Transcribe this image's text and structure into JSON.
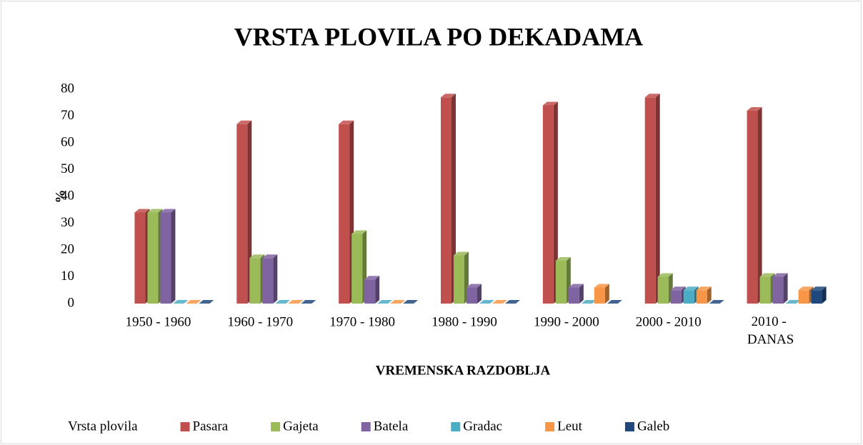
{
  "chart_data": {
    "type": "bar3d",
    "title": "VRSTA PLOVILA PO DEKADAMA",
    "y_label": "%",
    "x_label": "VREMENSKA RAZDOBLJA",
    "legend_title": "Vrsta plovila",
    "legend": "bottom",
    "grid": false,
    "categories": [
      "1950 - 1960",
      "1960 - 1970",
      "1970 - 1980",
      "1980 - 1990",
      "1990 - 2000",
      "2000 - 2010",
      "2010 - DANAS"
    ],
    "series": [
      {
        "name": "Pasara",
        "color": "#c0504d",
        "values": [
          34,
          67,
          67,
          77,
          74,
          77,
          72
        ]
      },
      {
        "name": "Gajeta",
        "color": "#9bbb59",
        "values": [
          34,
          17,
          26,
          18,
          16,
          10,
          10
        ]
      },
      {
        "name": "Batela",
        "color": "#8064a2",
        "values": [
          34,
          17,
          9,
          6,
          6,
          5,
          10
        ]
      },
      {
        "name": "Gradac",
        "color": "#4bacc6",
        "values": [
          0,
          0,
          0,
          0,
          0,
          5,
          0
        ]
      },
      {
        "name": "Leut",
        "color": "#f79646",
        "values": [
          0,
          0,
          0,
          0,
          6,
          5,
          5
        ]
      },
      {
        "name": "Galeb",
        "color": "#1f497d",
        "values": [
          0,
          0,
          0,
          0,
          0,
          0,
          5
        ]
      }
    ],
    "ylim": [
      0,
      80
    ],
    "yticks": [
      0,
      10,
      20,
      30,
      40,
      50,
      60,
      70,
      80
    ]
  }
}
